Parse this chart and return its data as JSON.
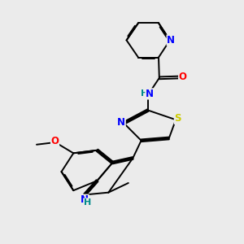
{
  "bg_color": "#ebebeb",
  "atom_color_N": "#0000ff",
  "atom_color_O": "#ff0000",
  "atom_color_S": "#cccc00",
  "atom_color_C": "#000000",
  "atom_color_H": "#008b8b",
  "bond_color": "#000000",
  "bond_width": 1.4,
  "dbo": 0.06,
  "xlim": [
    0,
    10
  ],
  "ylim": [
    -9,
    3
  ]
}
